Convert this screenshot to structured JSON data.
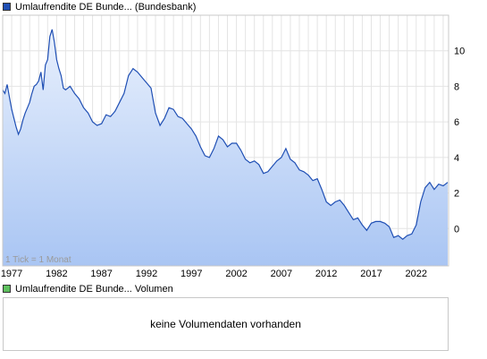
{
  "chart_data": [
    {
      "type": "area",
      "series": [
        {
          "name": "Umlaufrendite DE Bunde... (Bundesbank)",
          "x": [
            1976.0,
            1976.25,
            1976.5,
            1976.75,
            1977.0,
            1977.25,
            1977.5,
            1977.75,
            1978.0,
            1978.25,
            1978.5,
            1978.75,
            1979.0,
            1979.25,
            1979.5,
            1979.75,
            1980.0,
            1980.25,
            1980.5,
            1980.75,
            1981.0,
            1981.25,
            1981.5,
            1981.75,
            1982.0,
            1982.25,
            1982.5,
            1982.75,
            1983.0,
            1983.5,
            1984.0,
            1984.5,
            1985.0,
            1985.5,
            1986.0,
            1986.5,
            1987.0,
            1987.5,
            1988.0,
            1988.5,
            1989.0,
            1989.5,
            1990.0,
            1990.5,
            1991.0,
            1991.5,
            1992.0,
            1992.5,
            1993.0,
            1993.5,
            1994.0,
            1994.5,
            1995.0,
            1995.5,
            1996.0,
            1996.5,
            1997.0,
            1997.5,
            1998.0,
            1998.5,
            1999.0,
            1999.5,
            2000.0,
            2000.5,
            2001.0,
            2001.5,
            2002.0,
            2002.5,
            2003.0,
            2003.5,
            2004.0,
            2004.5,
            2005.0,
            2005.5,
            2006.0,
            2006.5,
            2007.0,
            2007.5,
            2008.0,
            2008.5,
            2009.0,
            2009.5,
            2010.0,
            2010.5,
            2011.0,
            2011.5,
            2012.0,
            2012.5,
            2013.0,
            2013.5,
            2014.0,
            2014.5,
            2015.0,
            2015.5,
            2016.0,
            2016.5,
            2017.0,
            2017.5,
            2018.0,
            2018.5,
            2019.0,
            2019.5,
            2020.0,
            2020.5,
            2021.0,
            2021.5,
            2022.0,
            2022.5,
            2023.0,
            2023.5,
            2024.0,
            2024.5,
            2025.0,
            2025.5
          ],
          "values": [
            7.8,
            7.6,
            8.1,
            7.4,
            6.7,
            6.2,
            5.7,
            5.3,
            5.6,
            6.1,
            6.5,
            6.8,
            7.1,
            7.6,
            8.0,
            8.1,
            8.3,
            8.8,
            7.8,
            9.2,
            9.5,
            10.8,
            11.2,
            10.5,
            9.5,
            9.0,
            8.6,
            7.9,
            7.8,
            8.0,
            7.6,
            7.3,
            6.8,
            6.5,
            6.0,
            5.8,
            5.9,
            6.4,
            6.3,
            6.6,
            7.1,
            7.6,
            8.6,
            9.0,
            8.8,
            8.5,
            8.2,
            7.9,
            6.5,
            5.8,
            6.2,
            6.8,
            6.7,
            6.3,
            6.2,
            5.9,
            5.6,
            5.2,
            4.6,
            4.1,
            4.0,
            4.5,
            5.2,
            5.0,
            4.6,
            4.8,
            4.8,
            4.4,
            3.9,
            3.7,
            3.8,
            3.6,
            3.1,
            3.2,
            3.5,
            3.8,
            4.0,
            4.5,
            3.9,
            3.7,
            3.3,
            3.2,
            3.0,
            2.7,
            2.8,
            2.2,
            1.5,
            1.3,
            1.5,
            1.6,
            1.3,
            0.9,
            0.5,
            0.6,
            0.2,
            -0.1,
            0.3,
            0.4,
            0.4,
            0.3,
            0.1,
            -0.5,
            -0.4,
            -0.6,
            -0.4,
            -0.3,
            0.2,
            1.5,
            2.3,
            2.6,
            2.2,
            2.5,
            2.4,
            2.6
          ]
        }
      ],
      "title": "",
      "xlabel": "",
      "ylabel": "",
      "xlim": [
        1976.0,
        2025.6
      ],
      "ylim": [
        -2.1,
        12.0
      ],
      "x_ticks": [
        1977,
        1982,
        1987,
        1992,
        1997,
        2002,
        2007,
        2012,
        2017,
        2022
      ],
      "y_ticks": [
        0,
        2,
        4,
        6,
        8,
        10
      ],
      "grid": true,
      "axis_side": "right",
      "line_color": "#1f4fb4",
      "fill_color_top": "#e8f0fd",
      "fill_color_bottom": "#a9c5f3",
      "note": "1 Tick = 1 Monat"
    }
  ],
  "legend": {
    "price_label": "Umlaufrendite DE Bunde... (Bundesbank)",
    "price_color": "#1f4fb4",
    "volume_label": "Umlaufrendite DE Bunde... Volumen",
    "volume_color": "#5ec05e"
  },
  "volume_panel": {
    "message": "keine Volumendaten vorhanden"
  }
}
